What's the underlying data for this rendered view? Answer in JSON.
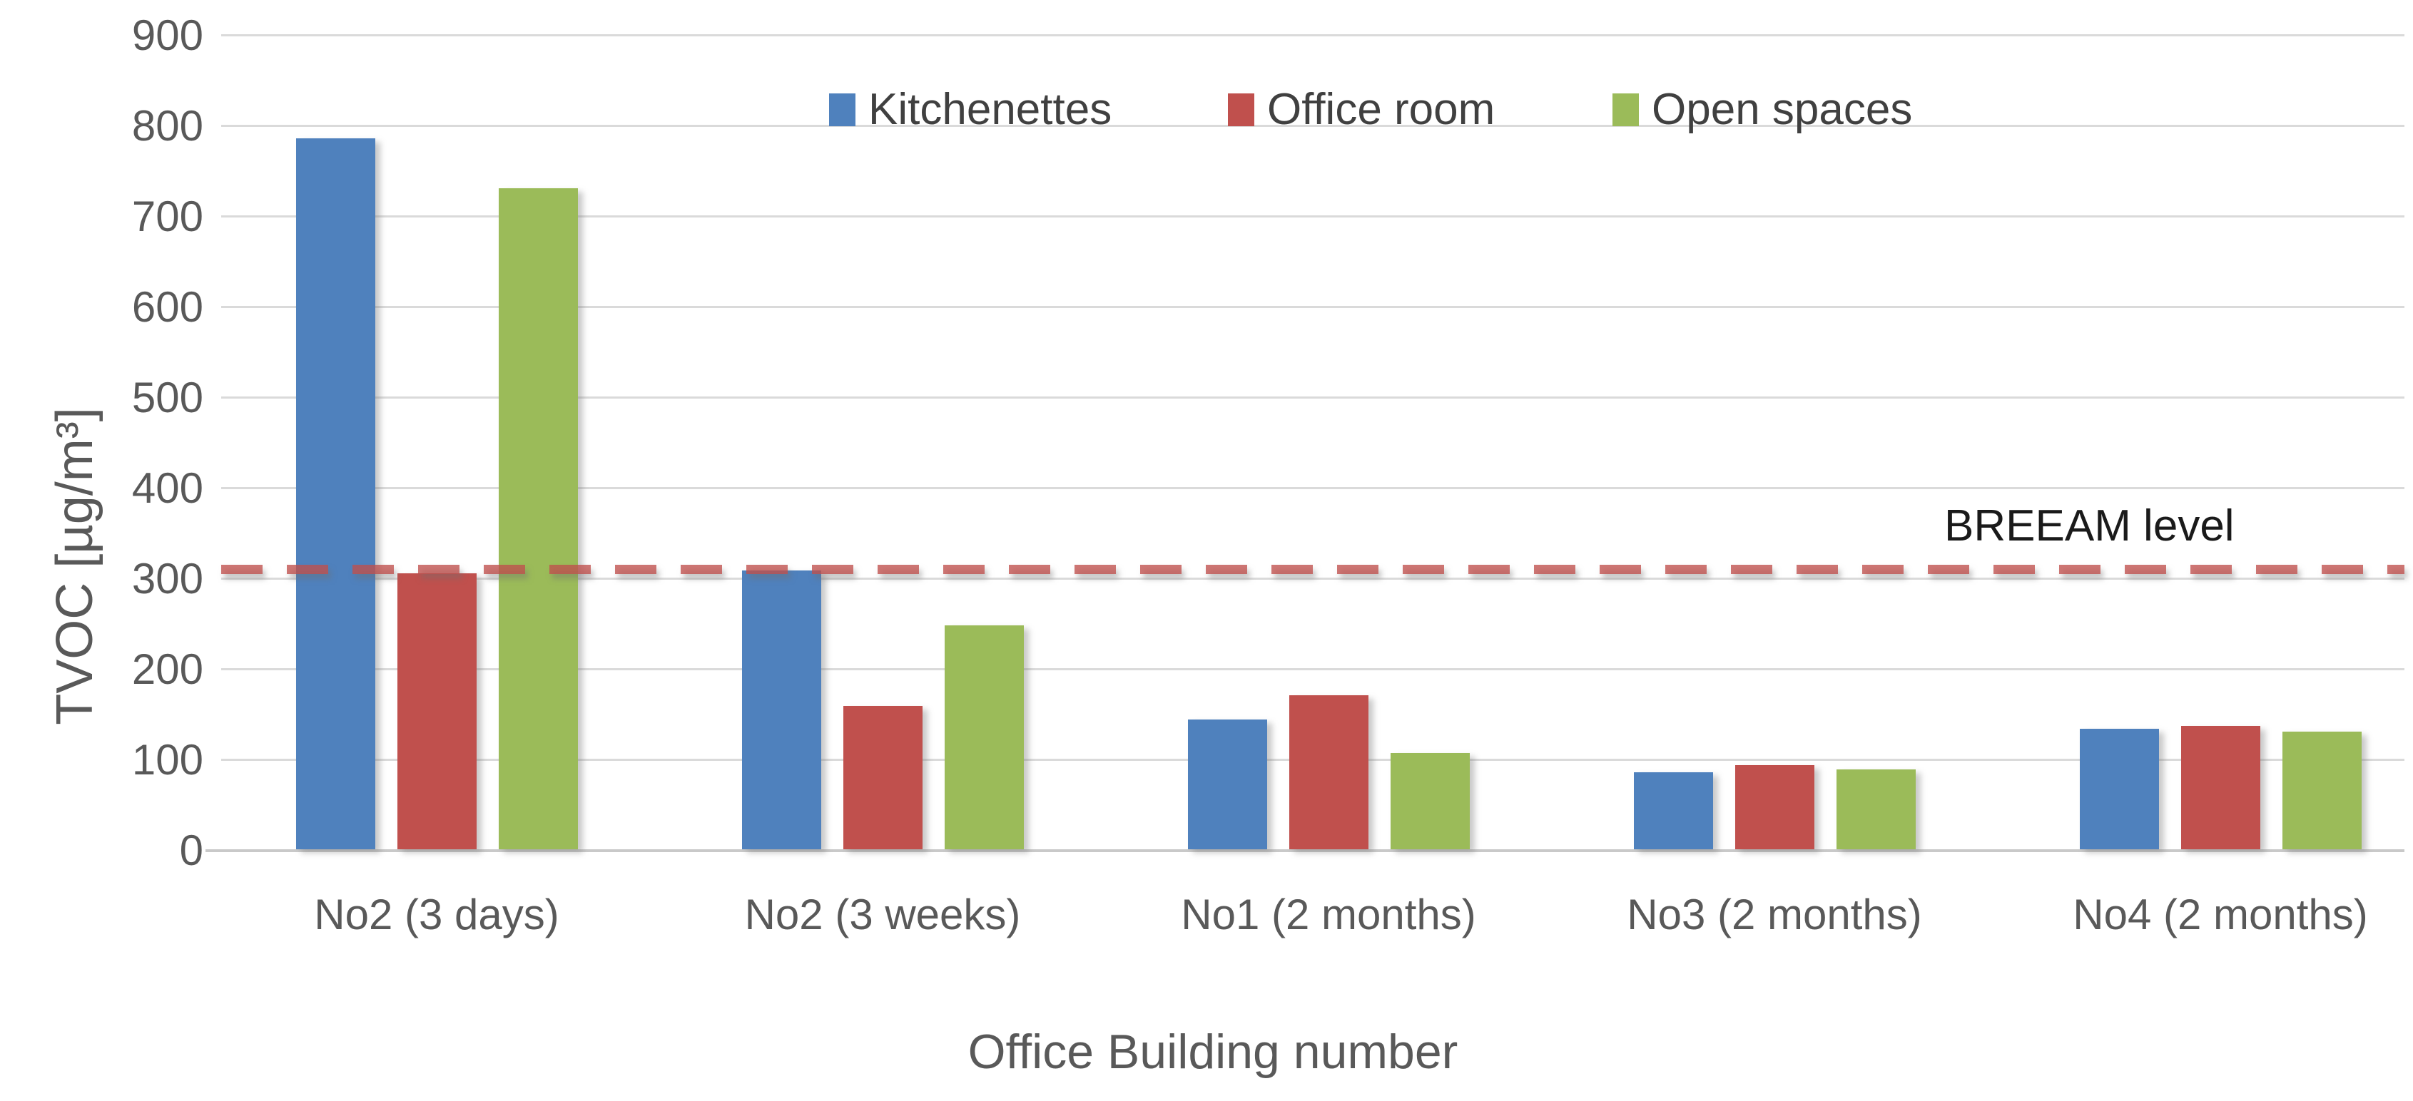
{
  "chart_data": {
    "type": "bar",
    "title": "",
    "categories": [
      "No2 (3 days)",
      "No2 (3 weeks)",
      "No1 (2 months)",
      "No3 (2 months)",
      "No4 (2 months)"
    ],
    "series": [
      {
        "name": "Kitchenettes",
        "color": "#4F81BD",
        "values": [
          785,
          308,
          143,
          85,
          133
        ]
      },
      {
        "name": "Office room",
        "color": "#C0504D",
        "values": [
          305,
          158,
          170,
          93,
          136
        ]
      },
      {
        "name": "Open spaces",
        "color": "#9BBB59",
        "values": [
          730,
          247,
          106,
          88,
          130
        ]
      }
    ],
    "xlabel": "Office Building number",
    "ylabel": "TVOC [µg/m³]",
    "ylim": [
      0,
      900
    ],
    "ytick_step": 100,
    "grid": true,
    "legend_position": "top-center",
    "reference_line": {
      "value": 310,
      "label": "BREEAM level",
      "color": "#C0504D",
      "style": "dashed"
    }
  },
  "colors": {
    "gridline": "#DADADA",
    "baseline": "#C9C9C9",
    "tick_text": "#595959",
    "axis_title_text": "#595959",
    "legend_text": "#404040",
    "reference_label_text": "#1A1A1A",
    "background": "#FFFFFF"
  }
}
